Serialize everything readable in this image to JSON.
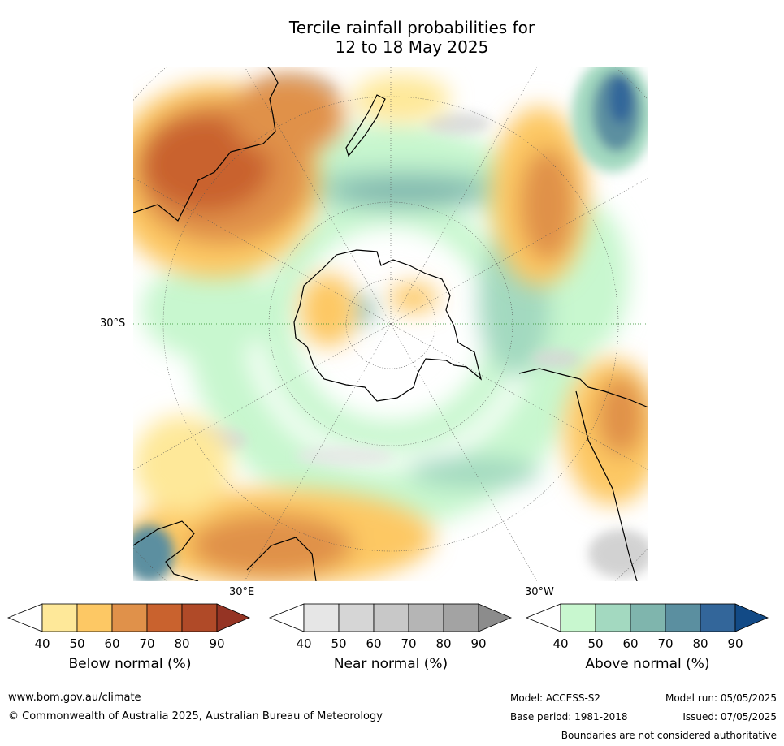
{
  "title": {
    "line1": "Tercile rainfall probabilities for",
    "line2": "12 to 18 May 2025"
  },
  "map": {
    "lat_label": "30°S",
    "lon_labels": {
      "east": "30°E",
      "west": "30°W"
    },
    "colors": {
      "below": [
        "#ffffff",
        "#fee899",
        "#fdc864",
        "#e0914a",
        "#c9622e",
        "#b04a28",
        "#953424"
      ],
      "near": [
        "#ffffff",
        "#e6e6e6",
        "#d6d6d6",
        "#c8c8c8",
        "#b5b5b5",
        "#a3a3a3",
        "#8c8c8c"
      ],
      "above": [
        "#ffffff",
        "#c8f7cf",
        "#a3d9c0",
        "#7fb5ad",
        "#5b8fa0",
        "#33669a",
        "#124a86"
      ]
    }
  },
  "colorbars": [
    {
      "name": "below",
      "label": "Below normal (%)",
      "ticks": [
        "40",
        "50",
        "60",
        "70",
        "80",
        "90"
      ]
    },
    {
      "name": "near",
      "label": "Near normal (%)",
      "ticks": [
        "40",
        "50",
        "60",
        "70",
        "80",
        "90"
      ]
    },
    {
      "name": "above",
      "label": "Above normal (%)",
      "ticks": [
        "40",
        "50",
        "60",
        "70",
        "80",
        "90"
      ]
    }
  ],
  "footer": {
    "website": "www.bom.gov.au/climate",
    "copyright": "© Commonwealth of Australia 2025, Australian Bureau of Meteorology",
    "model": "Model: ACCESS-S2",
    "model_run": "Model run: 05/05/2025",
    "base_period": "Base period: 1981-2018",
    "issued": "Issued: 07/05/2025",
    "disclaimer": "Boundaries are not considered authoritative"
  }
}
